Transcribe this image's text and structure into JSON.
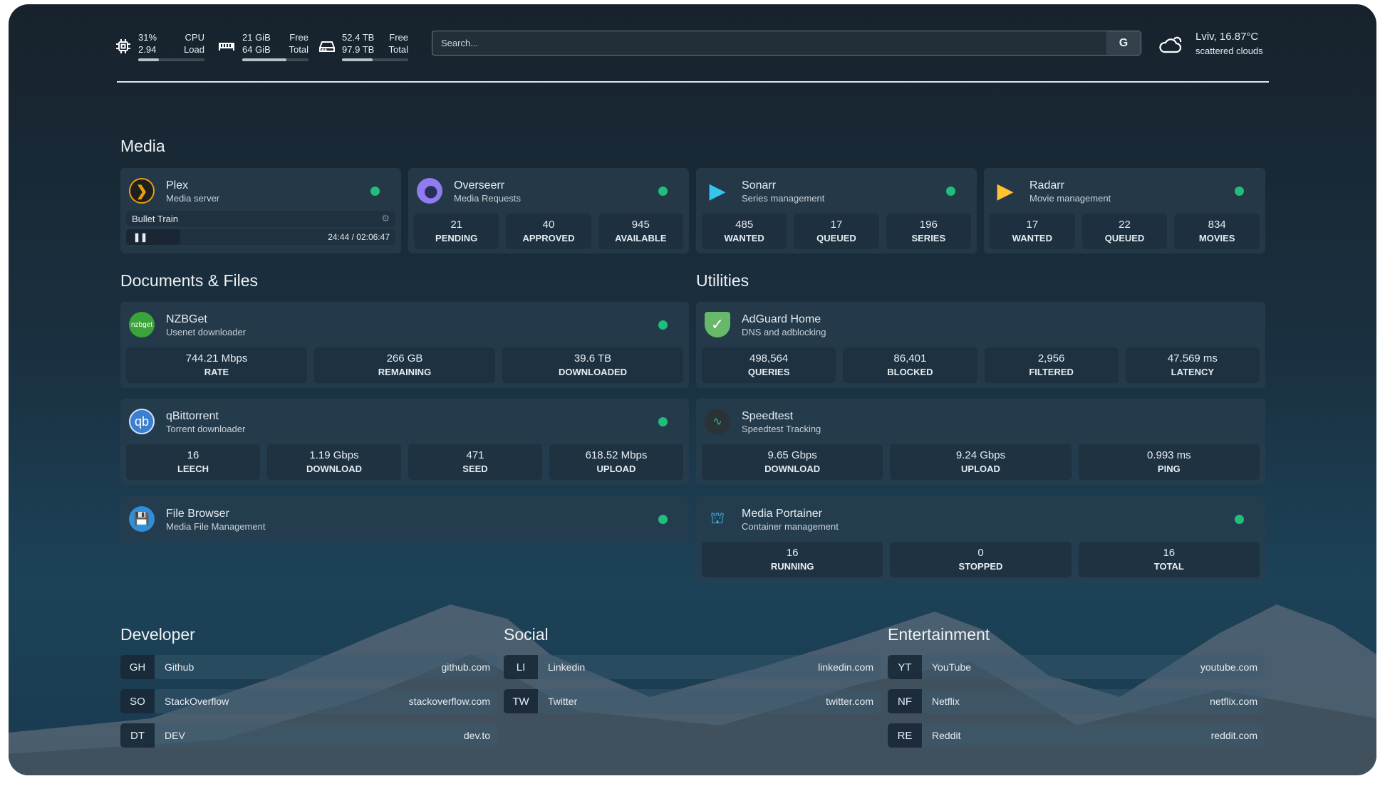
{
  "header": {
    "cpu": {
      "icon": "cpu-icon",
      "value1": "31%",
      "value2": "2.94",
      "label1": "CPU",
      "label2": "Load",
      "percent": 31
    },
    "ram": {
      "icon": "memory-icon",
      "value1": "21 GiB",
      "value2": "64 GiB",
      "label1": "Free",
      "label2": "Total",
      "percent": 67
    },
    "disk": {
      "icon": "hard-drive-icon",
      "value1": "52.4 TB",
      "value2": "97.9 TB",
      "label1": "Free",
      "label2": "Total",
      "percent": 46
    },
    "search": {
      "placeholder": "Search...",
      "engine_label": "G"
    },
    "weather": {
      "icon": "cloud-icon",
      "location": "Lviv, 16.87°C",
      "condition": "scattered clouds"
    }
  },
  "sections": {
    "media": "Media",
    "docs": "Documents & Files",
    "utilities": "Utilities",
    "developer": "Developer",
    "social": "Social",
    "entertainment": "Entertainment"
  },
  "status_color": "#1fbf7a",
  "media": {
    "plex": {
      "name": "Plex",
      "desc": "Media server",
      "title": "Bullet Train",
      "time": "24:44 / 02:06:47",
      "progress": 20
    },
    "overseerr": {
      "name": "Overseerr",
      "desc": "Media Requests",
      "stats": [
        {
          "v": "21",
          "l": "PENDING"
        },
        {
          "v": "40",
          "l": "APPROVED"
        },
        {
          "v": "945",
          "l": "AVAILABLE"
        }
      ]
    },
    "sonarr": {
      "name": "Sonarr",
      "desc": "Series management",
      "stats": [
        {
          "v": "485",
          "l": "WANTED"
        },
        {
          "v": "17",
          "l": "QUEUED"
        },
        {
          "v": "196",
          "l": "SERIES"
        }
      ]
    },
    "radarr": {
      "name": "Radarr",
      "desc": "Movie management",
      "stats": [
        {
          "v": "17",
          "l": "WANTED"
        },
        {
          "v": "22",
          "l": "QUEUED"
        },
        {
          "v": "834",
          "l": "MOVIES"
        }
      ]
    }
  },
  "docs": {
    "nzbget": {
      "name": "NZBGet",
      "logo": "nzbget",
      "desc": "Usenet downloader",
      "stats": [
        {
          "v": "744.21 Mbps",
          "l": "RATE"
        },
        {
          "v": "266 GB",
          "l": "REMAINING"
        },
        {
          "v": "39.6 TB",
          "l": "DOWNLOADED"
        }
      ]
    },
    "qbit": {
      "name": "qBittorrent",
      "logo": "qb",
      "desc": "Torrent downloader",
      "stats": [
        {
          "v": "16",
          "l": "LEECH"
        },
        {
          "v": "1.19 Gbps",
          "l": "DOWNLOAD"
        },
        {
          "v": "471",
          "l": "SEED"
        },
        {
          "v": "618.52 Mbps",
          "l": "UPLOAD"
        }
      ]
    },
    "filebrowser": {
      "name": "File Browser",
      "desc": "Media File Management"
    }
  },
  "utilities": {
    "adguard": {
      "name": "AdGuard Home",
      "desc": "DNS and adblocking",
      "stats": [
        {
          "v": "498,564",
          "l": "QUERIES"
        },
        {
          "v": "86,401",
          "l": "BLOCKED"
        },
        {
          "v": "2,956",
          "l": "FILTERED"
        },
        {
          "v": "47.569 ms",
          "l": "LATENCY"
        }
      ]
    },
    "speedtest": {
      "name": "Speedtest",
      "desc": "Speedtest Tracking",
      "stats": [
        {
          "v": "9.65 Gbps",
          "l": "DOWNLOAD"
        },
        {
          "v": "9.24 Gbps",
          "l": "UPLOAD"
        },
        {
          "v": "0.993 ms",
          "l": "PING"
        }
      ]
    },
    "portainer": {
      "name": "Media Portainer",
      "desc": "Container management",
      "stats": [
        {
          "v": "16",
          "l": "RUNNING"
        },
        {
          "v": "0",
          "l": "STOPPED"
        },
        {
          "v": "16",
          "l": "TOTAL"
        }
      ]
    }
  },
  "bookmarks": {
    "developer": [
      {
        "ab": "GH",
        "name": "Github",
        "url": "github.com"
      },
      {
        "ab": "SO",
        "name": "StackOverflow",
        "url": "stackoverflow.com"
      },
      {
        "ab": "DT",
        "name": "DEV",
        "url": "dev.to"
      }
    ],
    "social": [
      {
        "ab": "LI",
        "name": "Linkedin",
        "url": "linkedin.com"
      },
      {
        "ab": "TW",
        "name": "Twitter",
        "url": "twitter.com"
      }
    ],
    "entertainment": [
      {
        "ab": "YT",
        "name": "YouTube",
        "url": "youtube.com"
      },
      {
        "ab": "NF",
        "name": "Netflix",
        "url": "netflix.com"
      },
      {
        "ab": "RE",
        "name": "Reddit",
        "url": "reddit.com"
      }
    ]
  }
}
